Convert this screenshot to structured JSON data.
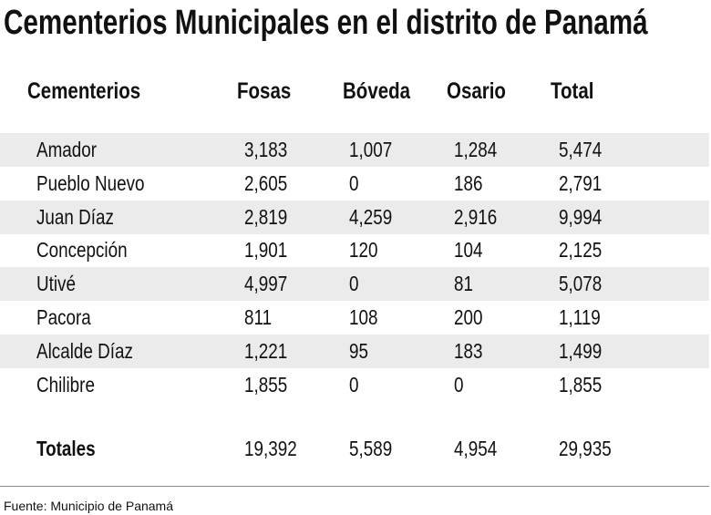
{
  "title": "Cementerios Municipales en el distrito de Panamá",
  "headers": [
    "Cementerios",
    "Fosas",
    "Bóveda",
    "Osario",
    "Total"
  ],
  "rows": [
    [
      "Amador",
      "3,183",
      "1,007",
      "1,284",
      "5,474"
    ],
    [
      "Pueblo Nuevo",
      "2,605",
      "0",
      "186",
      "2,791"
    ],
    [
      "Juan Díaz",
      "2,819",
      "4,259",
      "2,916",
      "9,994"
    ],
    [
      "Concepción",
      "1,901",
      "120",
      "104",
      "2,125"
    ],
    [
      "Utivé",
      "4,997",
      "0",
      "81",
      "5,078"
    ],
    [
      "Pacora",
      "811",
      "108",
      "200",
      "1,119"
    ],
    [
      "Alcalde Díaz",
      "1,221",
      "95",
      "183",
      "1,499"
    ],
    [
      "Chilibre",
      "1,855",
      "0",
      "0",
      "1,855"
    ]
  ],
  "totals": [
    "Totales",
    "19,392",
    "5,589",
    "4,954",
    "29,935"
  ],
  "source": "Fuente: Municipio de Panamá",
  "colors": {
    "row_shade": "#ebebeb",
    "text": "#111111"
  }
}
